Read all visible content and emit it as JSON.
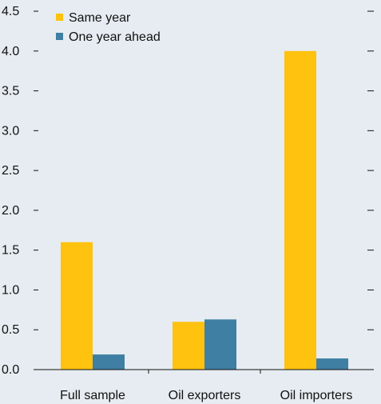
{
  "chart_data": {
    "type": "bar",
    "categories": [
      "Full sample",
      "Oil exporters",
      "Oil importers"
    ],
    "series": [
      {
        "name": "Same year",
        "color": "#ffc20e",
        "values": [
          1.6,
          0.6,
          4.0
        ]
      },
      {
        "name": "One year ahead",
        "color": "#3f7fa3",
        "values": [
          0.19,
          0.63,
          0.14
        ]
      }
    ],
    "ylim": [
      0,
      4.5
    ],
    "yticks": [
      "0.0",
      "0.5",
      "1.0",
      "1.5",
      "2.0",
      "2.5",
      "3.0",
      "3.5",
      "4.0",
      "4.5"
    ],
    "legend_position": "top-left",
    "grid": false,
    "background": "#e6ecf1"
  }
}
